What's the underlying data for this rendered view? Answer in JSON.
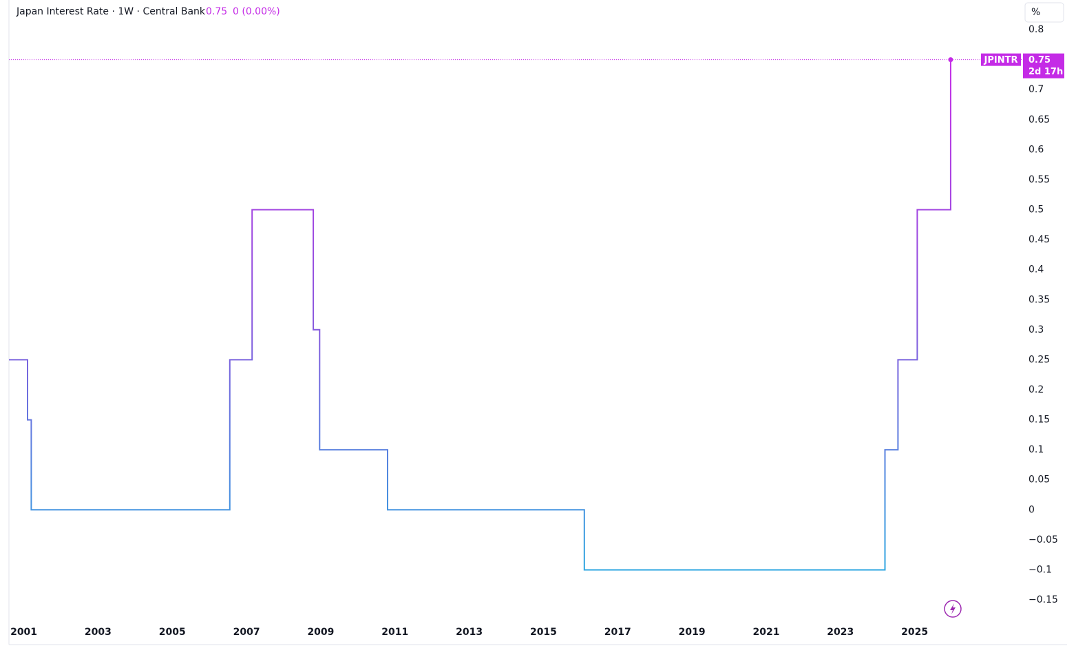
{
  "chart_data": {
    "type": "line",
    "title": "Japan Interest Rate · 1W · Central Bank",
    "last_value": 0.75,
    "change": "0 (0.00%)",
    "unit": "%",
    "symbol": "JPINTR",
    "countdown": "2d 17h",
    "x": [
      2000.6,
      2001.1,
      2001.2,
      2006.55,
      2007.15,
      2008.8,
      2008.97,
      2010.8,
      2016.1,
      2024.2,
      2024.55,
      2025.07,
      2025.97
    ],
    "series": [
      {
        "name": "JPINTR",
        "colors": [
          "#2ea6e0",
          "#8a55de",
          "#c42be6"
        ],
        "values": [
          0.25,
          0.15,
          0,
          0.25,
          0.5,
          0.3,
          0.1,
          0,
          -0.1,
          0.1,
          0.25,
          0.5,
          0.75
        ]
      }
    ],
    "xlim": [
      2000.6,
      2027.9
    ],
    "xticks": [
      2001,
      2003,
      2005,
      2007,
      2009,
      2011,
      2013,
      2015,
      2017,
      2019,
      2021,
      2023,
      2025
    ],
    "ylim": [
      -0.1993,
      0.8494
    ],
    "yticks": [
      0.8,
      0.75,
      0.7,
      0.65,
      0.6,
      0.55,
      0.5,
      0.45,
      0.4,
      0.35,
      0.3,
      0.25,
      0.2,
      0.15,
      0.1,
      0.05,
      0,
      {
        "value": -0.05,
        "label": "−0.05"
      },
      {
        "value": -0.1,
        "label": "−0.1"
      },
      {
        "value": -0.15,
        "label": "−0.15"
      }
    ],
    "grid": false
  }
}
